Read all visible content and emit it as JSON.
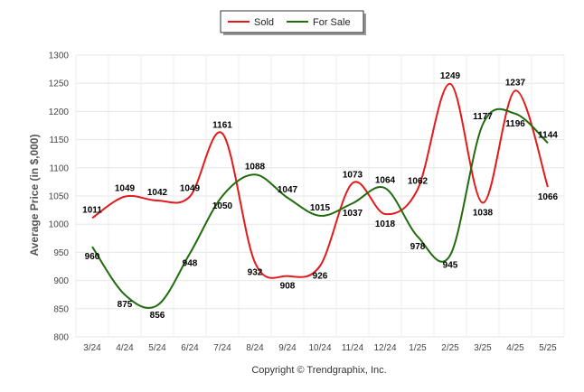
{
  "chart_data": {
    "type": "line",
    "ylabel": "Average Price (in $,000)",
    "ylim": [
      800,
      1300
    ],
    "yticks": [
      800,
      850,
      900,
      950,
      1000,
      1050,
      1100,
      1150,
      1200,
      1250,
      1300
    ],
    "categories": [
      "3/24",
      "4/24",
      "5/24",
      "6/24",
      "7/24",
      "8/24",
      "9/24",
      "10/24",
      "11/24",
      "12/24",
      "1/25",
      "2/25",
      "3/25",
      "4/25",
      "5/25"
    ],
    "grid": true,
    "legend_position": "top-center",
    "series": [
      {
        "name": "Sold",
        "color": "#e31a1c",
        "values": [
          1011,
          1049,
          1042,
          1049,
          1161,
          932,
          908,
          926,
          1073,
          1018,
          1062,
          1249,
          1038,
          1237,
          1066
        ]
      },
      {
        "name": "For Sale",
        "color": "#1f6b0e",
        "values": [
          960,
          875,
          856,
          948,
          1050,
          1088,
          1047,
          1015,
          1037,
          1064,
          978,
          945,
          1177,
          1196,
          1144
        ]
      }
    ]
  },
  "footer": {
    "copyright": "Copyright © Trendgraphix, Inc."
  }
}
